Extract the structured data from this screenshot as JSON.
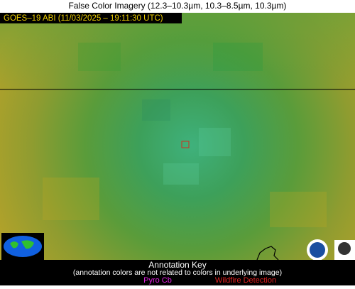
{
  "title": "False Color Imagery (12.3–10.3µm, 10.3–8.5µm, 10.3µm)",
  "overlay_label": "GOES–19 ABI (11/03/2025 – 19:11:30 UTC)",
  "annotation_key": {
    "heading": "Annotation Key",
    "note": "(annotation colors are not related to colors in underlying image)",
    "items": [
      "Pyro Cb",
      "Wildfire Detection"
    ]
  }
}
